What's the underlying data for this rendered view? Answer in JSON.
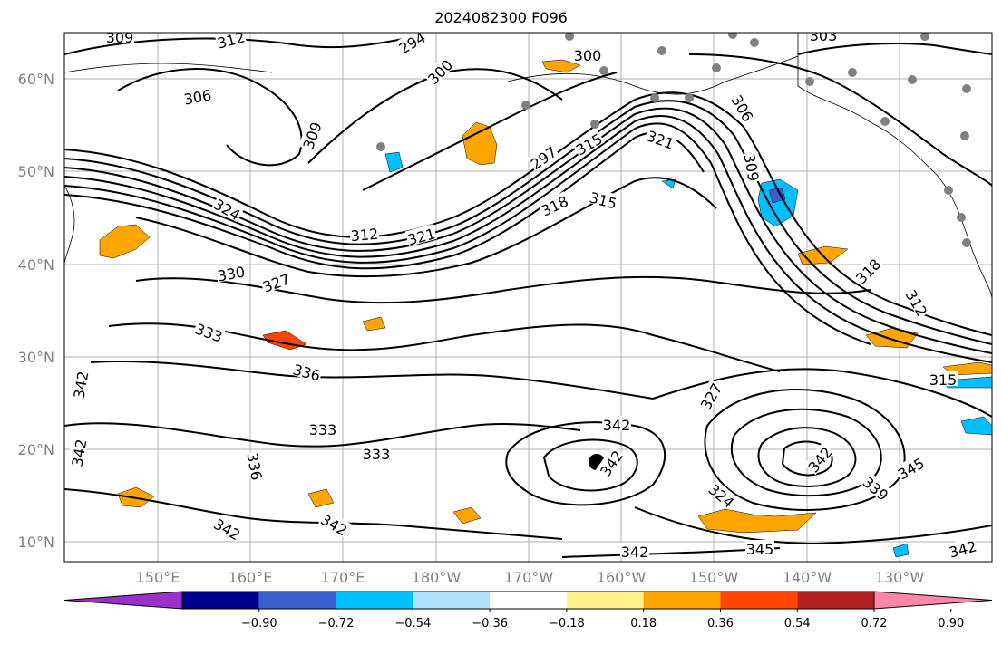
{
  "title": "2024082300 F096",
  "lat_ticks": [
    "60°N",
    "50°N",
    "40°N",
    "30°N",
    "20°N",
    "10°N"
  ],
  "lon_ticks": [
    "150°E",
    "160°E",
    "170°E",
    "180°W",
    "170°W",
    "160°W",
    "150°W",
    "140°W",
    "130°W"
  ],
  "colorbar": {
    "colors": [
      "#9932cc",
      "#00008b",
      "#3a5fcd",
      "#00bfff",
      "#b0e2ff",
      "#ffffff",
      "#fff08a",
      "#ffa500",
      "#ff4500",
      "#b22222",
      "#ff88aa"
    ],
    "tick_labels": [
      "−0.90",
      "−0.72",
      "−0.54",
      "−0.36",
      "−0.18",
      "0.18",
      "0.36",
      "0.54",
      "0.72",
      "0.90"
    ]
  },
  "contour_labels": [
    "309",
    "312",
    "294",
    "300",
    "303",
    "306",
    "309",
    "297",
    "300",
    "306",
    "309",
    "315",
    "321",
    "324",
    "318",
    "315",
    "312",
    "321",
    "318",
    "330",
    "327",
    "312",
    "333",
    "336",
    "342",
    "315",
    "327",
    "342",
    "333",
    "333",
    "336",
    "342",
    "342",
    "342",
    "342",
    "324",
    "342",
    "339",
    "345",
    "345",
    "342",
    "342"
  ],
  "legend": {
    "colors": {
      "contour": "#000000",
      "grid": "#b0b0b0",
      "station": "#808080"
    }
  }
}
